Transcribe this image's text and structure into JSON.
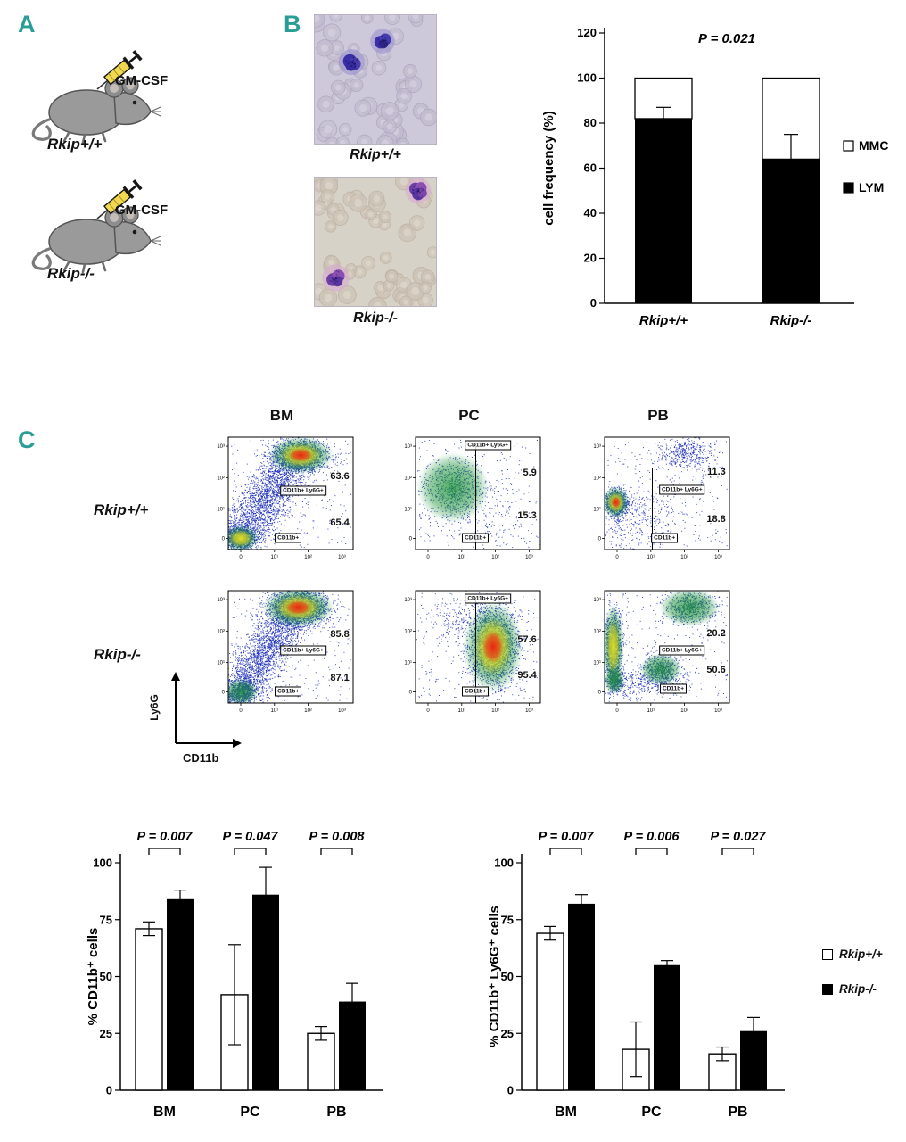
{
  "figure": {
    "background": "#ffffff"
  },
  "colors": {
    "panel_label": "#2a9d96",
    "bar_black": "#000000",
    "bar_white": "#ffffff"
  },
  "panelA": {
    "label": "A",
    "mice": [
      {
        "injection": "GM-CSF",
        "genotype": "Rkip+/+"
      },
      {
        "injection": "GM-CSF",
        "genotype": "Rkip-/-"
      }
    ]
  },
  "panelB": {
    "label": "B",
    "images": [
      {
        "caption": "Rkip+/+"
      },
      {
        "caption": "Rkip-/-"
      }
    ]
  },
  "panelC": {
    "label": "C",
    "col_headers": [
      "BM",
      "PC",
      "PB"
    ],
    "row_labels": [
      "Rkip+/+",
      "Rkip-/-"
    ],
    "yaxis": "Ly6G",
    "xaxis": "CD11b",
    "gate_upper": "CD11b+ Ly6G+",
    "gate_lower": "CD11b+",
    "x_ticks": [
      "0",
      "10¹",
      "10²",
      "10³"
    ],
    "y_ticks": [
      "10³",
      "10²",
      "10¹",
      "0"
    ],
    "plots": [
      {
        "row": "Rkip+/+",
        "col": "BM",
        "upper_pct": "63.6",
        "lower_pct": "65.4"
      },
      {
        "row": "Rkip+/+",
        "col": "PC",
        "upper_pct": "5.9",
        "lower_pct": "15.3"
      },
      {
        "row": "Rkip+/+",
        "col": "PB",
        "upper_pct": "11.3",
        "lower_pct": "18.8"
      },
      {
        "row": "Rkip-/-",
        "col": "BM",
        "upper_pct": "85.8",
        "lower_pct": "87.1"
      },
      {
        "row": "Rkip-/-",
        "col": "PC",
        "upper_pct": "57.6",
        "lower_pct": "95.4"
      },
      {
        "row": "Rkip-/-",
        "col": "PB",
        "upper_pct": "20.2",
        "lower_pct": "50.6"
      }
    ]
  },
  "chart_data": [
    {
      "type": "bar",
      "subtype": "stacked",
      "title": "P = 0.021",
      "ylabel": "cell frequency (%)",
      "ylim": [
        0,
        120
      ],
      "yticks": [
        0,
        20,
        40,
        60,
        80,
        100,
        120
      ],
      "categories": [
        "Rkip+/+",
        "Rkip-/-"
      ],
      "series": [
        {
          "name": "LYM",
          "color": "#000000",
          "values": [
            82,
            64
          ],
          "errors": [
            5,
            11
          ]
        },
        {
          "name": "MMC",
          "color": "#ffffff",
          "values": [
            18,
            36
          ],
          "errors": [
            0,
            0
          ]
        }
      ],
      "legend": [
        "MMC",
        "LYM"
      ],
      "legend_position": "right"
    },
    {
      "type": "bar",
      "subtype": "grouped",
      "ylabel": "% CD11b⁺ cells",
      "ylim": [
        0,
        100
      ],
      "yticks": [
        0,
        25,
        50,
        75,
        100
      ],
      "categories": [
        "BM",
        "PC",
        "PB"
      ],
      "series": [
        {
          "name": "Rkip+/+",
          "color": "#ffffff",
          "values": [
            71,
            42,
            25
          ],
          "errors": [
            3,
            22,
            3
          ]
        },
        {
          "name": "Rkip-/-",
          "color": "#000000",
          "values": [
            84,
            86,
            39
          ],
          "errors": [
            4,
            12,
            8
          ]
        }
      ],
      "p_values": [
        "P = 0.007",
        "P = 0.047",
        "P = 0.008"
      ]
    },
    {
      "type": "bar",
      "subtype": "grouped",
      "ylabel": "% CD11b⁺ Ly6G⁺ cells",
      "ylim": [
        0,
        100
      ],
      "yticks": [
        0,
        25,
        50,
        75,
        100
      ],
      "categories": [
        "BM",
        "PC",
        "PB"
      ],
      "series": [
        {
          "name": "Rkip+/+",
          "color": "#ffffff",
          "values": [
            69,
            18,
            16
          ],
          "errors": [
            3,
            12,
            3
          ]
        },
        {
          "name": "Rkip-/-",
          "color": "#000000",
          "values": [
            82,
            55,
            26
          ],
          "errors": [
            4,
            2,
            6
          ]
        }
      ],
      "p_values": [
        "P = 0.007",
        "P = 0.006",
        "P = 0.027"
      ]
    }
  ]
}
